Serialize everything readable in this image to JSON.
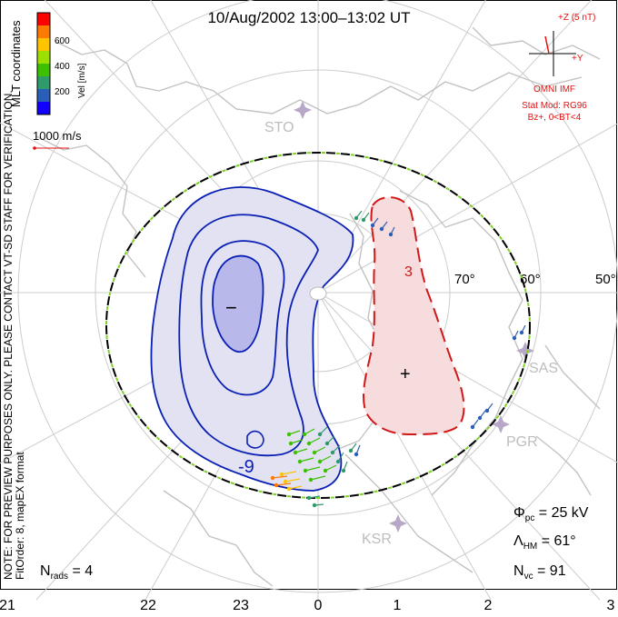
{
  "title": "10/Aug/2002 13:00–13:02 UT",
  "colorbar": {
    "ticks": [
      "600",
      "400",
      "200"
    ],
    "label": "Vel [m/s]",
    "colors": [
      "#ff0000",
      "#ff7a00",
      "#ffc400",
      "#9be000",
      "#3cc000",
      "#2f9a6a",
      "#2a5fb8",
      "#1200ff"
    ]
  },
  "coord_label": "MLT coordinates",
  "scale_label": "1000 m/s",
  "imf": {
    "z_label": "+Z (5 nT)",
    "y_label": "+Y",
    "source": "OMNI IMF",
    "model": "Stat Mod: RG96",
    "condition": "Bz+, 0<BT<4"
  },
  "stations": [
    "STO",
    "SAS",
    "PGR",
    "KSR"
  ],
  "lat_labels": [
    "70°",
    "60°",
    "50°"
  ],
  "cells": {
    "dusk_symbol": "−",
    "dawn_symbol": "+",
    "dusk_contour_label": "-9",
    "dawn_contour_label": "3"
  },
  "stats": {
    "phi_label": "Φ",
    "phi_sub": "pc",
    "phi_value": " = 25 kV",
    "lambda_label": "Λ",
    "lambda_sub": "HM",
    "lambda_value": " = 61°",
    "nvc_label": "N",
    "nvc_sub": "vc",
    "nvc_value": " = 91",
    "nrads_label": "N",
    "nrads_sub": "rads",
    "nrads_value": " = 4"
  },
  "side_note": "NOTE: FOR PREVIEW PURPOSES ONLY. PLEASE CONTACT VT-SD STAFF FOR VERIFICATION.",
  "fit_order": "FitOrder: 8, mapEX format",
  "mlt_axis": [
    "21",
    "22",
    "23",
    "0",
    "1",
    "2",
    "3"
  ],
  "colors": {
    "dusk_fill": "#e2e2f2",
    "dusk_core": "#b8b8ea",
    "dusk_line": "#0a20b4",
    "dawn_fill": "#f6dcdc",
    "dawn_line": "#d01818",
    "grid": "#cccccc",
    "coast": "#c2c2c2",
    "hmb_green": "#7ed321",
    "annotation_red": "#e01010"
  }
}
